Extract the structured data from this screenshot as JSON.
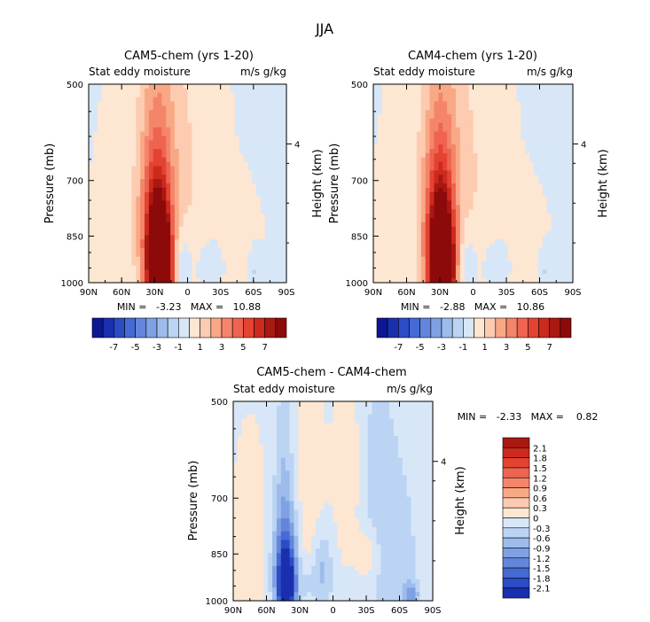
{
  "figure": {
    "title": "JJA"
  },
  "colors": {
    "pos": [
      "#fde6d2",
      "#fccbb0",
      "#f9a886",
      "#f4856a",
      "#ee6450",
      "#e44331",
      "#cc2a1c",
      "#a91811",
      "#8c0a0a"
    ],
    "neg": [
      "#d8e7f8",
      "#bcd4f3",
      "#9dbcec",
      "#7fa1e4",
      "#6386dc",
      "#456ad4",
      "#2b4cc5",
      "#1a2fae",
      "#0c1791"
    ],
    "background": "#dfeefc"
  },
  "chart_data": [
    {
      "type": "heatmap",
      "id": "cam5",
      "title": "CAM5-chem (yrs 1-20)",
      "subtitle_left": "Stat eddy moisture",
      "subtitle_right": "m/s g/kg",
      "xlabel": "",
      "ylabel": "Pressure (mb)",
      "ylabel_right": "Height (km)",
      "x_ticks": [
        "90N",
        "60N",
        "30N",
        "0",
        "30S",
        "60S",
        "90S"
      ],
      "y_ticks": [
        {
          "label": "500",
          "p": 500
        },
        {
          "label": "700",
          "p": 700
        },
        {
          "label": "850",
          "p": 850
        },
        {
          "label": "1000",
          "p": 1000
        }
      ],
      "right_ticks": [
        {
          "label": "4",
          "p": 616
        }
      ],
      "stats": "MIN =   -3.23   MAX =   10.88",
      "min": -3.23,
      "max": 10.88,
      "colorbar_labels": [
        "-7",
        "-5",
        "-3",
        "-1",
        "1",
        "3",
        "5",
        "7"
      ],
      "features": [
        {
          "lat": 25,
          "p": 960,
          "dlat": 7,
          "dp": 105,
          "value": 10.8
        },
        {
          "lat": 28,
          "p": 830,
          "dlat": 9,
          "dp": 160,
          "value": 4.5
        },
        {
          "lat": 28,
          "p": 700,
          "dlat": 13,
          "dp": 310,
          "value": 1.3
        },
        {
          "lat": 20,
          "p": 600,
          "dlat": 22,
          "dp": 320,
          "value": 0.8
        },
        {
          "lat": -5,
          "p": 720,
          "dlat": 16,
          "dp": 220,
          "value": 0.6
        },
        {
          "lat": 60,
          "p": 880,
          "dlat": 16,
          "dp": 180,
          "value": 0.45
        },
        {
          "lat": -45,
          "p": 920,
          "dlat": 14,
          "dp": 130,
          "value": 0.35
        },
        {
          "lat": 5,
          "p": 930,
          "dlat": 6,
          "dp": 70,
          "value": -1.6
        },
        {
          "lat": -20,
          "p": 940,
          "dlat": 9,
          "dp": 60,
          "value": -0.9
        },
        {
          "lat": -62,
          "p": 960,
          "dlat": 4,
          "dp": 45,
          "value": -1.2
        },
        {
          "lat": -78,
          "p": 940,
          "dlat": 4,
          "dp": 35,
          "value": -0.8
        }
      ]
    },
    {
      "type": "heatmap",
      "id": "cam4",
      "title": "CAM4-chem (yrs 1-20)",
      "subtitle_left": "Stat eddy moisture",
      "subtitle_right": "m/s g/kg",
      "xlabel": "",
      "ylabel": "Pressure (mb)",
      "ylabel_right": "Height (km)",
      "x_ticks": [
        "90N",
        "60N",
        "30N",
        "0",
        "30S",
        "60S",
        "90S"
      ],
      "y_ticks": [
        {
          "label": "500",
          "p": 500
        },
        {
          "label": "700",
          "p": 700
        },
        {
          "label": "850",
          "p": 850
        },
        {
          "label": "1000",
          "p": 1000
        }
      ],
      "right_ticks": [
        {
          "label": "4",
          "p": 616
        }
      ],
      "stats": "MIN =   -2.88   MAX =   10.86",
      "min": -2.88,
      "max": 10.86,
      "colorbar_labels": [
        "-7",
        "-5",
        "-3",
        "-1",
        "1",
        "3",
        "5",
        "7"
      ],
      "features": [
        {
          "lat": 28,
          "p": 960,
          "dlat": 7,
          "dp": 105,
          "value": 10.8
        },
        {
          "lat": 30,
          "p": 830,
          "dlat": 9,
          "dp": 160,
          "value": 4.5
        },
        {
          "lat": 30,
          "p": 700,
          "dlat": 13,
          "dp": 310,
          "value": 1.3
        },
        {
          "lat": 22,
          "p": 600,
          "dlat": 22,
          "dp": 320,
          "value": 0.8
        },
        {
          "lat": -5,
          "p": 720,
          "dlat": 16,
          "dp": 220,
          "value": 0.6
        },
        {
          "lat": 62,
          "p": 880,
          "dlat": 16,
          "dp": 180,
          "value": 0.45
        },
        {
          "lat": -45,
          "p": 920,
          "dlat": 14,
          "dp": 130,
          "value": 0.35
        },
        {
          "lat": 5,
          "p": 930,
          "dlat": 6,
          "dp": 70,
          "value": -1.4
        },
        {
          "lat": -20,
          "p": 940,
          "dlat": 9,
          "dp": 60,
          "value": -0.9
        },
        {
          "lat": -65,
          "p": 960,
          "dlat": 4,
          "dp": 45,
          "value": -1.1
        },
        {
          "lat": -78,
          "p": 940,
          "dlat": 4,
          "dp": 35,
          "value": -0.8
        }
      ]
    },
    {
      "type": "heatmap",
      "id": "diff",
      "title": "CAM5-chem - CAM4-chem",
      "subtitle_left": "Stat eddy moisture",
      "subtitle_right": "m/s g/kg",
      "xlabel": "",
      "ylabel": "Pressure (mb)",
      "ylabel_right": "Height (km)",
      "x_ticks": [
        "90N",
        "60N",
        "30N",
        "0",
        "30S",
        "60S",
        "90S"
      ],
      "y_ticks": [
        {
          "label": "500",
          "p": 500
        },
        {
          "label": "700",
          "p": 700
        },
        {
          "label": "850",
          "p": 850
        },
        {
          "label": "1000",
          "p": 1000
        }
      ],
      "right_ticks": [
        {
          "label": "4",
          "p": 616
        }
      ],
      "stats": "MIN =   -2.33   MAX =    0.82",
      "min": -2.33,
      "max": 0.82,
      "colorbar_labels": [
        "2.1",
        "1.8",
        "1.5",
        "1.2",
        "0.9",
        "0.6",
        "0.3",
        "0",
        "-0.3",
        "-0.6",
        "-0.9",
        "-1.2",
        "-1.5",
        "-1.8",
        "-2.1"
      ],
      "features": [
        {
          "lat": 42,
          "p": 950,
          "dlat": 6,
          "dp": 90,
          "value": -2.3
        },
        {
          "lat": 42,
          "p": 860,
          "dlat": 9,
          "dp": 150,
          "value": -1.0
        },
        {
          "lat": 44,
          "p": 700,
          "dlat": 6,
          "dp": 260,
          "value": -0.45
        },
        {
          "lat": 10,
          "p": 905,
          "dlat": 7,
          "dp": 90,
          "value": -0.75
        },
        {
          "lat": 24,
          "p": 950,
          "dlat": 5,
          "dp": 50,
          "value": -0.35
        },
        {
          "lat": -32,
          "p": 850,
          "dlat": 7,
          "dp": 55,
          "value": 0.55
        },
        {
          "lat": -14,
          "p": 640,
          "dlat": 7,
          "dp": 140,
          "value": 0.4
        },
        {
          "lat": 28,
          "p": 810,
          "dlat": 15,
          "dp": 200,
          "value": 0.35
        },
        {
          "lat": 75,
          "p": 880,
          "dlat": 10,
          "dp": 190,
          "value": 0.3
        },
        {
          "lat": -40,
          "p": 700,
          "dlat": 14,
          "dp": 260,
          "value": -0.35
        },
        {
          "lat": -60,
          "p": 850,
          "dlat": 14,
          "dp": 180,
          "value": -0.35
        },
        {
          "lat": -70,
          "p": 980,
          "dlat": 5,
          "dp": 30,
          "value": -0.9
        }
      ]
    }
  ]
}
